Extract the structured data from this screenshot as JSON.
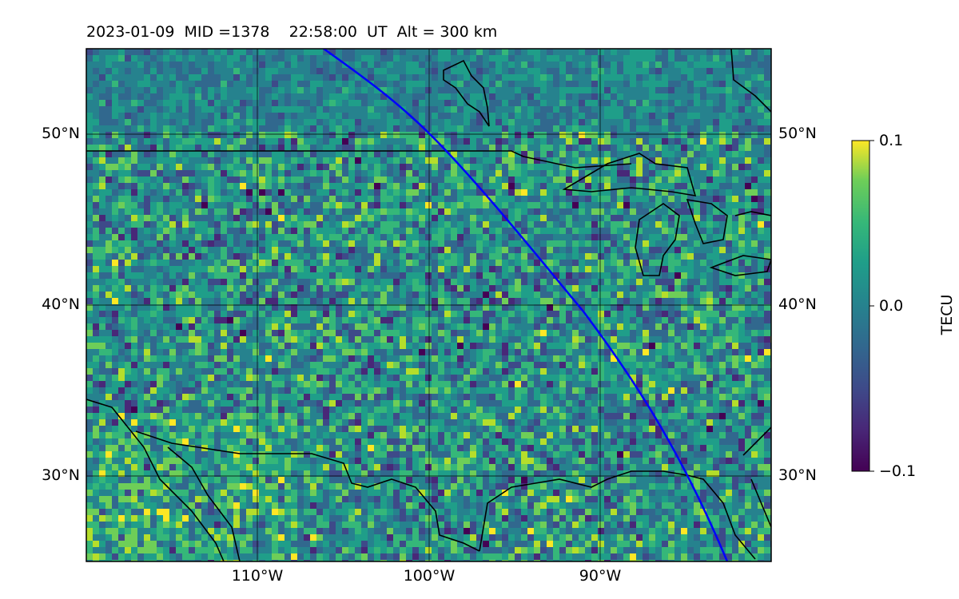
{
  "header": {
    "date": "2023-01-09",
    "mid": "MID =1378",
    "time": "22:58:00  UT",
    "alt": "Alt = 300 km"
  },
  "map": {
    "lat_labels": [
      "50°N",
      "40°N",
      "30°N"
    ],
    "lon_labels": [
      "110°W",
      "100°W",
      "90°W"
    ],
    "lat_values": [
      50,
      40,
      30
    ],
    "lon_values": [
      -110,
      -100,
      -90
    ],
    "extent": {
      "lon_min": -120,
      "lon_max": -80,
      "lat_min": 25,
      "lat_max": 55
    },
    "colormap": "viridis",
    "track_color": "#0000ff",
    "coastline_color": "#000000"
  },
  "colorbar": {
    "label": "TECU",
    "ticks": [
      "0.1",
      "0.0",
      "−0.1"
    ],
    "min": -0.1,
    "max": 0.1
  }
}
